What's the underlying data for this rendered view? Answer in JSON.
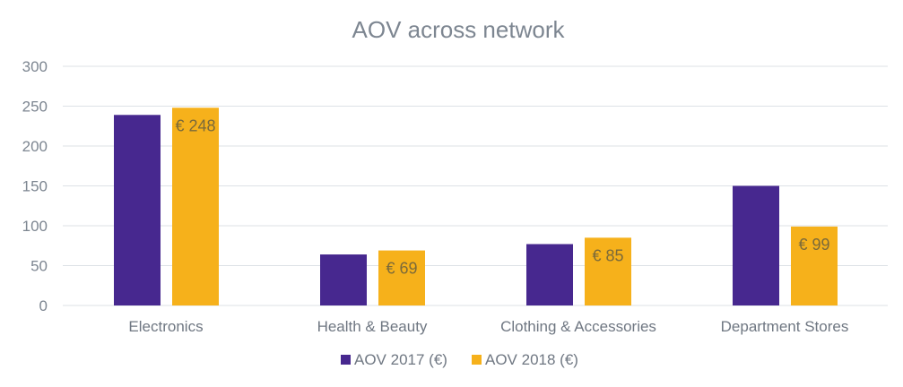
{
  "chart_data": {
    "type": "bar",
    "title": "AOV across network",
    "categories": [
      "Electronics",
      "Health & Beauty",
      "Clothing & Accessories",
      "Department Stores"
    ],
    "series": [
      {
        "name": "AOV 2017 (€)",
        "color": "#47288f",
        "values": [
          239,
          64,
          77,
          150
        ]
      },
      {
        "name": "AOV 2018 (€)",
        "color": "#f6b11b",
        "values": [
          248,
          69,
          85,
          99
        ],
        "data_labels": [
          "€ 248",
          "€ 69",
          "€ 85",
          "€ 99"
        ]
      }
    ],
    "ylim": [
      0,
      300
    ],
    "yticks": [
      0,
      50,
      100,
      150,
      200,
      250,
      300
    ],
    "grid": true,
    "legend": "bottom"
  },
  "colors": {
    "grid": "#dde1e6",
    "text": "#7d8691"
  }
}
